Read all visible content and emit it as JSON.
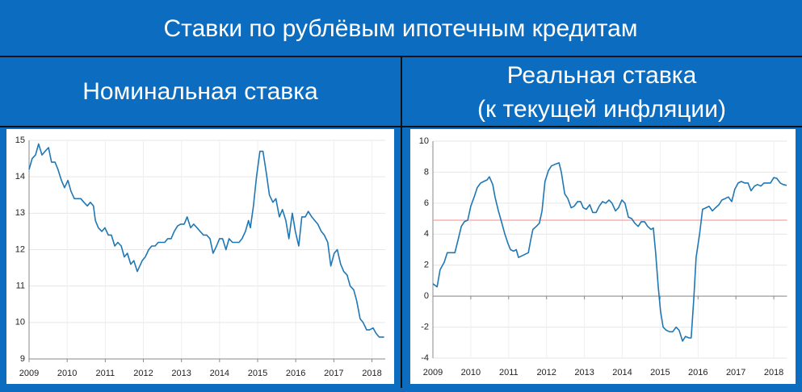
{
  "header": {
    "title": "Ставки по рублёвым ипотечным кредитам"
  },
  "panels": [
    {
      "title_lines": [
        "Номинальная ставка"
      ]
    },
    {
      "title_lines": [
        "Реальная ставка",
        "(к текущей инфляции)"
      ]
    }
  ],
  "chart_data": [
    {
      "type": "line",
      "x": [
        2009.0,
        2009.08,
        2009.17,
        2009.25,
        2009.34,
        2009.42,
        2009.51,
        2009.59,
        2009.68,
        2009.76,
        2009.85,
        2009.93,
        2010.02,
        2010.1,
        2010.19,
        2010.36,
        2010.44,
        2010.53,
        2010.61,
        2010.69,
        2010.74,
        2010.82,
        2010.91,
        2010.99,
        2011.08,
        2011.16,
        2011.25,
        2011.33,
        2011.42,
        2011.5,
        2011.58,
        2011.67,
        2011.75,
        2011.84,
        2011.97,
        2012.05,
        2012.14,
        2012.22,
        2012.31,
        2012.39,
        2012.56,
        2012.64,
        2012.73,
        2012.81,
        2012.9,
        2012.98,
        2013.07,
        2013.15,
        2013.24,
        2013.32,
        2013.41,
        2013.49,
        2013.58,
        2013.66,
        2013.75,
        2013.83,
        2013.92,
        2014.0,
        2014.08,
        2014.17,
        2014.25,
        2014.34,
        2014.51,
        2014.59,
        2014.68,
        2014.76,
        2014.81,
        2014.89,
        2014.97,
        2015.06,
        2015.14,
        2015.23,
        2015.31,
        2015.4,
        2015.48,
        2015.57,
        2015.65,
        2015.74,
        2015.82,
        2015.91,
        2015.99,
        2016.08,
        2016.16,
        2016.25,
        2016.33,
        2016.42,
        2016.5,
        2016.58,
        2016.67,
        2016.75,
        2016.84,
        2016.92,
        2017.01,
        2017.09,
        2017.18,
        2017.26,
        2017.35,
        2017.43,
        2017.52,
        2017.6,
        2017.69,
        2017.77,
        2017.86,
        2017.94,
        2018.03,
        2018.11,
        2018.19,
        2018.32
      ],
      "series": [
        {
          "color": "#1f77b4",
          "values": [
            14.2,
            14.5,
            14.6,
            14.9,
            14.6,
            14.7,
            14.8,
            14.4,
            14.4,
            14.2,
            13.9,
            13.7,
            13.9,
            13.6,
            13.4,
            13.4,
            13.3,
            13.2,
            13.3,
            13.2,
            12.8,
            12.6,
            12.5,
            12.6,
            12.4,
            12.4,
            12.1,
            12.2,
            12.1,
            11.8,
            11.9,
            11.6,
            11.7,
            11.4,
            11.7,
            11.8,
            12.0,
            12.1,
            12.1,
            12.2,
            12.2,
            12.3,
            12.3,
            12.5,
            12.65,
            12.7,
            12.7,
            12.9,
            12.6,
            12.7,
            12.6,
            12.5,
            12.4,
            12.4,
            12.3,
            11.9,
            12.1,
            12.3,
            12.3,
            12.0,
            12.3,
            12.2,
            12.2,
            12.3,
            12.5,
            12.8,
            12.6,
            13.2,
            14.0,
            14.7,
            14.7,
            14.1,
            13.5,
            13.3,
            13.4,
            12.9,
            13.1,
            12.8,
            12.3,
            13.0,
            12.5,
            12.1,
            12.9,
            12.9,
            13.05,
            12.9,
            12.8,
            12.7,
            12.5,
            12.4,
            12.2,
            11.55,
            11.9,
            12.0,
            11.6,
            11.4,
            11.3,
            11.0,
            10.9,
            10.6,
            10.1,
            10.0,
            9.8,
            9.8,
            9.85,
            9.7,
            9.6,
            9.6
          ]
        }
      ],
      "xlim": [
        2009,
        2018.35
      ],
      "xticks": [
        2009,
        2010,
        2011,
        2012,
        2013,
        2014,
        2015,
        2016,
        2017,
        2018
      ],
      "ylim": [
        9,
        15
      ],
      "yticks": [
        9,
        10,
        11,
        12,
        13,
        14,
        15
      ],
      "grid": true
    },
    {
      "type": "line",
      "x": [
        2009.0,
        2009.11,
        2009.19,
        2009.3,
        2009.38,
        2009.49,
        2009.58,
        2009.66,
        2009.75,
        2009.83,
        2009.92,
        2010.0,
        2010.09,
        2010.17,
        2010.26,
        2010.34,
        2010.43,
        2010.49,
        2010.58,
        2010.64,
        2010.73,
        2010.81,
        2010.9,
        2010.98,
        2011.05,
        2011.13,
        2011.2,
        2011.26,
        2011.35,
        2011.43,
        2011.52,
        2011.58,
        2011.64,
        2011.73,
        2011.81,
        2011.88,
        2011.96,
        2012.05,
        2012.13,
        2012.22,
        2012.33,
        2012.39,
        2012.48,
        2012.56,
        2012.65,
        2012.73,
        2012.82,
        2012.9,
        2012.97,
        2013.05,
        2013.14,
        2013.22,
        2013.31,
        2013.39,
        2013.48,
        2013.56,
        2013.65,
        2013.73,
        2013.82,
        2013.9,
        2013.99,
        2014.07,
        2014.16,
        2014.25,
        2014.33,
        2014.42,
        2014.5,
        2014.59,
        2014.67,
        2014.76,
        2014.82,
        2014.88,
        2014.95,
        2015.01,
        2015.08,
        2015.16,
        2015.25,
        2015.33,
        2015.42,
        2015.5,
        2015.59,
        2015.67,
        2015.76,
        2015.82,
        2015.89,
        2015.95,
        2016.04,
        2016.12,
        2016.21,
        2016.29,
        2016.38,
        2016.46,
        2016.55,
        2016.63,
        2016.72,
        2016.8,
        2016.89,
        2016.97,
        2017.06,
        2017.14,
        2017.23,
        2017.32,
        2017.4,
        2017.49,
        2017.57,
        2017.66,
        2017.74,
        2017.83,
        2017.91,
        2018.0,
        2018.08,
        2018.17,
        2018.25,
        2018.34
      ],
      "series": [
        {
          "color": "#1f77b4",
          "values": [
            0.8,
            0.6,
            1.7,
            2.2,
            2.8,
            2.8,
            2.8,
            3.6,
            4.5,
            4.8,
            4.9,
            5.8,
            6.4,
            7.0,
            7.3,
            7.4,
            7.5,
            7.7,
            7.2,
            6.4,
            5.5,
            4.8,
            4.0,
            3.4,
            3.0,
            2.9,
            3.0,
            2.5,
            2.6,
            2.7,
            2.8,
            3.6,
            4.3,
            4.5,
            4.7,
            5.5,
            7.4,
            8.1,
            8.4,
            8.5,
            8.6,
            8.0,
            6.6,
            6.3,
            5.7,
            5.8,
            6.1,
            6.1,
            5.7,
            5.6,
            5.9,
            5.4,
            5.4,
            5.8,
            6.1,
            6.0,
            6.2,
            6.0,
            5.5,
            5.7,
            6.2,
            6.0,
            5.1,
            5.0,
            4.7,
            4.5,
            4.8,
            4.8,
            4.5,
            4.3,
            4.4,
            2.8,
            0.6,
            -1.0,
            -2.0,
            -2.2,
            -2.3,
            -2.3,
            -2.0,
            -2.2,
            -2.9,
            -2.6,
            -2.7,
            -2.7,
            -0.1,
            2.5,
            4.0,
            5.6,
            5.7,
            5.8,
            5.5,
            5.7,
            5.9,
            6.2,
            6.3,
            6.4,
            6.1,
            6.9,
            7.3,
            7.4,
            7.3,
            7.3,
            6.8,
            7.1,
            7.2,
            7.1,
            7.3,
            7.3,
            7.3,
            7.65,
            7.6,
            7.3,
            7.2,
            7.15
          ]
        }
      ],
      "reference_line": {
        "value": 4.9,
        "color": "#f4a3a3"
      },
      "xlim": [
        2009,
        2018.35
      ],
      "xticks": [
        2009,
        2010,
        2011,
        2012,
        2013,
        2014,
        2015,
        2016,
        2017,
        2018
      ],
      "ylim": [
        -4,
        10
      ],
      "yticks": [
        -4,
        -2,
        0,
        2,
        4,
        6,
        8,
        10
      ],
      "grid": true
    }
  ]
}
